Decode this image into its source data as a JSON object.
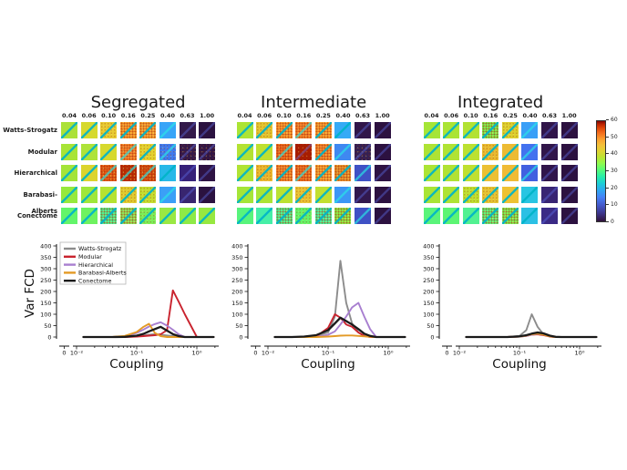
{
  "heatmap_section": {
    "row_labels": [
      "Watts-Strogatz",
      "Modular",
      "Hierarchical",
      "Barabasi-Alberts",
      "Conectome"
    ],
    "col_labels": [
      "0.04",
      "0.06",
      "0.10",
      "0.16",
      "0.25",
      "0.40",
      "0.63",
      "1.00"
    ],
    "panels": [
      {
        "title": "Segregated",
        "cells": [
          [
            "#abe138",
            "#d6d92e",
            "#e8cb32",
            "#f89c2d",
            "#f7a334",
            "#38a5f8",
            "#33194a",
            "#2b1240"
          ],
          [
            "#a8e437",
            "#aee33a",
            "#d6d92e",
            "#f5832b",
            "#e3d22f",
            "#3f7bf0",
            "#33194a",
            "#301545"
          ],
          [
            "#a4e438",
            "#dcd42d",
            "#e45a16",
            "#bc2d03",
            "#d54f10",
            "#27b8e8",
            "#362179",
            "#2e1343"
          ],
          [
            "#96e93c",
            "#9fe73a",
            "#b5e231",
            "#e0cb2e",
            "#c4de30",
            "#3b9ff7",
            "#38256f",
            "#2b1240"
          ],
          [
            "#63f56a",
            "#6ef25f",
            "#52f191",
            "#8fe45a",
            "#7bee58",
            "#9ae843",
            "#8eea46",
            "#97e840"
          ]
        ],
        "noise": [
          [
            0,
            0,
            1,
            2,
            2,
            0,
            0,
            0
          ],
          [
            0,
            0,
            0,
            2,
            1,
            1,
            1,
            1
          ],
          [
            0,
            0,
            2,
            2,
            2,
            0,
            0,
            0
          ],
          [
            0,
            0,
            0,
            1,
            1,
            0,
            0,
            0
          ],
          [
            0,
            0,
            2,
            2,
            1,
            0,
            0,
            0
          ]
        ]
      },
      {
        "title": "Intermediate",
        "cells": [
          [
            "#abe434",
            "#e2c42f",
            "#f9982e",
            "#f5832b",
            "#f99d2f",
            "#35aaf6",
            "#31164a",
            "#2c1140"
          ],
          [
            "#b3e233",
            "#bfe02f",
            "#ee6a1d",
            "#a81c01",
            "#f4882d",
            "#3f88f1",
            "#342054",
            "#2c1140"
          ],
          [
            "#b0e334",
            "#eab62e",
            "#f4872c",
            "#ee6f20",
            "#f9a132",
            "#e9932c",
            "#3f51c5",
            "#2e1343"
          ],
          [
            "#a5e537",
            "#abe434",
            "#bbe131",
            "#e9c233",
            "#c2df30",
            "#3c96f5",
            "#32184e",
            "#2c1140"
          ],
          [
            "#58f47c",
            "#46efa7",
            "#52f191",
            "#65f468",
            "#4cf09b",
            "#8bea47",
            "#3f51c5",
            "#2c1140"
          ]
        ],
        "noise": [
          [
            0,
            1,
            2,
            2,
            2,
            0,
            0,
            0
          ],
          [
            0,
            0,
            2,
            1,
            2,
            0,
            1,
            0
          ],
          [
            0,
            1,
            2,
            2,
            2,
            2,
            0,
            0
          ],
          [
            0,
            0,
            0,
            1,
            0,
            0,
            0,
            0
          ],
          [
            0,
            0,
            2,
            1,
            2,
            2,
            0,
            0
          ]
        ]
      },
      {
        "title": "Integrated",
        "cells": [
          [
            "#a5e537",
            "#aae435",
            "#b2e233",
            "#7eec50",
            "#ddd02f",
            "#3a9ff7",
            "#31164a",
            "#2c1140"
          ],
          [
            "#aee334",
            "#b0e334",
            "#bce131",
            "#e9bb31",
            "#edbb33",
            "#4372ef",
            "#31164a",
            "#2c1140"
          ],
          [
            "#ace434",
            "#b1e233",
            "#c0e030",
            "#ecc033",
            "#f0bb35",
            "#4160e0",
            "#30154a",
            "#2c1140"
          ],
          [
            "#a9e435",
            "#aee334",
            "#bfe030",
            "#e5c434",
            "#eec233",
            "#28c5e2",
            "#382473",
            "#2c1140"
          ],
          [
            "#5af47a",
            "#5cf573",
            "#52f191",
            "#62f379",
            "#7eee55",
            "#2bc0e4",
            "#3a2a85",
            "#2c1140"
          ]
        ],
        "noise": [
          [
            0,
            0,
            0,
            2,
            1,
            0,
            0,
            0
          ],
          [
            0,
            0,
            0,
            1,
            0,
            0,
            0,
            0
          ],
          [
            0,
            0,
            0,
            0,
            0,
            0,
            0,
            0
          ],
          [
            0,
            0,
            1,
            1,
            0,
            0,
            0,
            0
          ],
          [
            0,
            0,
            0,
            2,
            2,
            0,
            0,
            0
          ]
        ]
      }
    ],
    "colorbar": {
      "min": 0,
      "max": 60,
      "ticks": [
        0,
        10,
        20,
        30,
        40,
        50,
        60
      ]
    }
  },
  "line_colors": {
    "Watts-Strogatz": "#8c8c8c",
    "Modular": "#c9232e",
    "Hierarchical": "#a87fd0",
    "Barabasi-Alberts": "#e39a26",
    "Conectome": "#1a1a1a"
  },
  "legend": {
    "entries": [
      "Watts-Strogatz",
      "Modular",
      "Hierarchical",
      "Barabasi-Alberts",
      "Conectome"
    ]
  },
  "chart_data": [
    {
      "type": "line",
      "panel": "Segregated",
      "xscale": "log",
      "xlabel": "Coupling",
      "ylabel": "Var FCD",
      "ylim": [
        0,
        400
      ],
      "yticks": [
        0,
        50,
        100,
        150,
        200,
        250,
        300,
        350,
        400
      ],
      "zero_label": "0",
      "xtick_vals": [
        0.01,
        0.1,
        1
      ],
      "xtick_labels": [
        "10⁻²",
        "10⁻¹",
        "10⁰"
      ],
      "legend_visible": true,
      "x": [
        0.013,
        0.025,
        0.04,
        0.063,
        0.1,
        0.13,
        0.16,
        0.2,
        0.25,
        0.32,
        0.4,
        0.5,
        0.63,
        1.0,
        1.9
      ],
      "series": [
        {
          "name": "Watts-Strogatz",
          "values": [
            0,
            0,
            0,
            1,
            4,
            7,
            10,
            12,
            10,
            7,
            4,
            2,
            0,
            0,
            0
          ]
        },
        {
          "name": "Modular",
          "values": [
            0,
            0,
            0,
            0,
            2,
            4,
            6,
            8,
            12,
            30,
            205,
            155,
            100,
            0,
            0
          ]
        },
        {
          "name": "Hierarchical",
          "values": [
            0,
            0,
            0,
            3,
            18,
            33,
            46,
            57,
            65,
            50,
            32,
            12,
            0,
            0,
            0
          ]
        },
        {
          "name": "Barabasi-Alberts",
          "values": [
            0,
            0,
            1,
            5,
            22,
            45,
            58,
            18,
            4,
            0,
            0,
            0,
            0,
            0,
            0
          ]
        },
        {
          "name": "Conectome",
          "values": [
            0,
            0,
            0,
            1,
            6,
            14,
            25,
            35,
            45,
            28,
            13,
            4,
            0,
            0,
            0
          ]
        }
      ]
    },
    {
      "type": "line",
      "panel": "Intermediate",
      "xscale": "log",
      "xlabel": "Coupling",
      "ylabel": "",
      "ylim": [
        0,
        400
      ],
      "yticks": [
        0,
        50,
        100,
        150,
        200,
        250,
        300,
        350,
        400
      ],
      "zero_label": "0",
      "xtick_vals": [
        0.01,
        0.1,
        1
      ],
      "xtick_labels": [
        "10⁻²",
        "10⁻¹",
        "10⁰"
      ],
      "legend_visible": false,
      "x": [
        0.013,
        0.025,
        0.04,
        0.063,
        0.1,
        0.13,
        0.16,
        0.2,
        0.25,
        0.32,
        0.4,
        0.5,
        0.63,
        1.0,
        1.9
      ],
      "series": [
        {
          "name": "Watts-Strogatz",
          "values": [
            0,
            0,
            0,
            5,
            20,
            90,
            335,
            150,
            60,
            20,
            5,
            0,
            0,
            0,
            0
          ]
        },
        {
          "name": "Modular",
          "values": [
            0,
            0,
            0,
            2,
            40,
            100,
            85,
            55,
            45,
            20,
            5,
            0,
            0,
            0,
            0
          ]
        },
        {
          "name": "Hierarchical",
          "values": [
            0,
            0,
            0,
            0,
            10,
            25,
            55,
            90,
            130,
            150,
            90,
            35,
            0,
            0,
            0
          ]
        },
        {
          "name": "Barabasi-Alberts",
          "values": [
            0,
            0,
            0,
            0,
            2,
            4,
            6,
            7,
            7,
            5,
            3,
            1,
            0,
            0,
            0
          ]
        },
        {
          "name": "Conectome",
          "values": [
            0,
            0,
            2,
            8,
            30,
            60,
            85,
            70,
            55,
            35,
            15,
            5,
            0,
            0,
            0
          ]
        }
      ]
    },
    {
      "type": "line",
      "panel": "Integrated",
      "xscale": "log",
      "xlabel": "Coupling",
      "ylabel": "",
      "ylim": [
        0,
        400
      ],
      "yticks": [
        0,
        50,
        100,
        150,
        200,
        250,
        300,
        350,
        400
      ],
      "zero_label": "0",
      "xtick_vals": [
        0.01,
        0.1,
        1
      ],
      "xtick_labels": [
        "10⁻²",
        "10⁻¹",
        "10⁰"
      ],
      "legend_visible": false,
      "x": [
        0.013,
        0.025,
        0.04,
        0.063,
        0.1,
        0.13,
        0.16,
        0.2,
        0.25,
        0.32,
        0.4,
        0.5,
        0.63,
        1.0,
        1.9
      ],
      "series": [
        {
          "name": "Watts-Strogatz",
          "values": [
            0,
            0,
            0,
            0,
            5,
            30,
            100,
            45,
            12,
            2,
            0,
            0,
            0,
            0,
            0
          ]
        },
        {
          "name": "Modular",
          "values": [
            0,
            0,
            0,
            0,
            2,
            5,
            10,
            12,
            8,
            2,
            0,
            0,
            0,
            0,
            0
          ]
        },
        {
          "name": "Hierarchical",
          "values": [
            0,
            0,
            0,
            0,
            2,
            5,
            10,
            14,
            10,
            4,
            0,
            0,
            0,
            0,
            0
          ]
        },
        {
          "name": "Barabasi-Alberts",
          "values": [
            0,
            0,
            0,
            0,
            2,
            6,
            12,
            15,
            10,
            3,
            0,
            0,
            0,
            0,
            0
          ]
        },
        {
          "name": "Conectome",
          "values": [
            0,
            0,
            0,
            0,
            3,
            8,
            15,
            20,
            16,
            6,
            1,
            0,
            0,
            0,
            0
          ]
        }
      ]
    }
  ]
}
